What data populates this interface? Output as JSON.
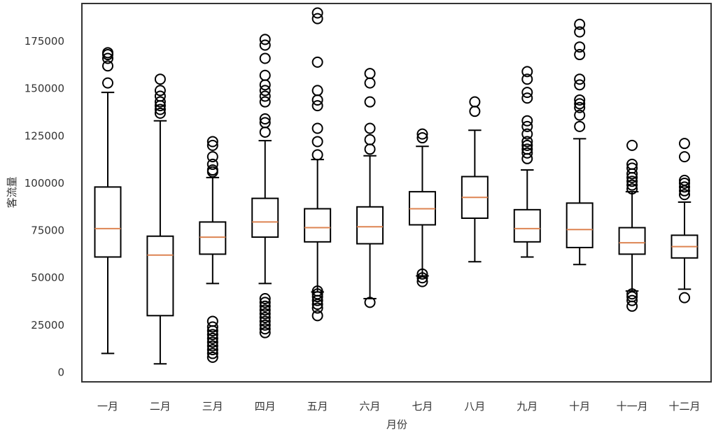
{
  "chart_data": {
    "type": "boxplot",
    "title": "",
    "xlabel": "月份",
    "ylabel": "客流量",
    "ylim": [
      -5000,
      195000
    ],
    "yticks": [
      0,
      25000,
      50000,
      75000,
      100000,
      125000,
      150000,
      175000
    ],
    "yticklabels": [
      "0",
      "25000",
      "50000",
      "75000",
      "100000",
      "125000",
      "150000",
      "175000"
    ],
    "grid": false,
    "colors": {
      "box": "#000000",
      "median": "#dd8452",
      "frame": "#333333"
    },
    "categories": [
      "一月",
      "二月",
      "三月",
      "四月",
      "五月",
      "六月",
      "七月",
      "八月",
      "九月",
      "十月",
      "十一月",
      "十二月"
    ],
    "boxes": [
      {
        "label": "一月",
        "whisker_low": 10000,
        "q1": 61000,
        "median": 76000,
        "q3": 98000,
        "whisker_high": 148000,
        "outliers": [
          153000,
          162000,
          166000,
          168000,
          169000
        ]
      },
      {
        "label": "二月",
        "whisker_low": 4500,
        "q1": 30000,
        "median": 62000,
        "q3": 72000,
        "whisker_high": 133000,
        "outliers": [
          137000,
          139000,
          141000,
          143000,
          146000,
          149000,
          155000
        ]
      },
      {
        "label": "三月",
        "whisker_low": 47000,
        "q1": 62500,
        "median": 71500,
        "q3": 79500,
        "whisker_high": 103000,
        "outliers": [
          8000,
          10000,
          12000,
          14000,
          16000,
          18000,
          20000,
          22000,
          24000,
          27000,
          106000,
          107000,
          110000,
          114000,
          120000,
          122000
        ]
      },
      {
        "label": "四月",
        "whisker_low": 47000,
        "q1": 71500,
        "median": 79500,
        "q3": 92000,
        "whisker_high": 122500,
        "outliers": [
          21000,
          23000,
          25000,
          27000,
          29000,
          31000,
          33000,
          35000,
          37000,
          39000,
          127000,
          132000,
          134000,
          143000,
          146000,
          149000,
          152000,
          157000,
          166000,
          173000,
          176000
        ]
      },
      {
        "label": "五月",
        "whisker_low": 42500,
        "q1": 69000,
        "median": 76500,
        "q3": 86500,
        "whisker_high": 112500,
        "outliers": [
          30000,
          34000,
          36000,
          38000,
          40000,
          41500,
          43000,
          115000,
          122000,
          129000,
          141000,
          144000,
          149000,
          164000,
          187000,
          190000
        ]
      },
      {
        "label": "六月",
        "whisker_low": 39000,
        "q1": 68000,
        "median": 77000,
        "q3": 87500,
        "whisker_high": 114500,
        "outliers": [
          37000,
          118000,
          123000,
          129000,
          143000,
          153000,
          158000
        ]
      },
      {
        "label": "七月",
        "whisker_low": 51000,
        "q1": 78000,
        "median": 86500,
        "q3": 95500,
        "whisker_high": 119500,
        "outliers": [
          48000,
          50000,
          52000,
          124000,
          126000
        ]
      },
      {
        "label": "八月",
        "whisker_low": 58500,
        "q1": 81500,
        "median": 92500,
        "q3": 103500,
        "whisker_high": 128000,
        "outliers": [
          138000,
          143000
        ]
      },
      {
        "label": "九月",
        "whisker_low": 61000,
        "q1": 69000,
        "median": 76000,
        "q3": 86000,
        "whisker_high": 107000,
        "outliers": [
          113000,
          116000,
          118000,
          120000,
          122000,
          126000,
          130000,
          133000,
          145000,
          148000,
          155000,
          159000
        ]
      },
      {
        "label": "十月",
        "whisker_low": 57000,
        "q1": 66000,
        "median": 75500,
        "q3": 89500,
        "whisker_high": 123500,
        "outliers": [
          130000,
          136000,
          140000,
          142000,
          144000,
          152000,
          155000,
          168000,
          172000,
          180000,
          184000
        ]
      },
      {
        "label": "十一月",
        "whisker_low": 43000,
        "q1": 62500,
        "median": 68500,
        "q3": 76500,
        "whisker_high": 95500,
        "outliers": [
          35000,
          38000,
          40000,
          41500,
          97000,
          99000,
          101000,
          103000,
          105000,
          108000,
          110000,
          120000
        ]
      },
      {
        "label": "十二月",
        "whisker_low": 44000,
        "q1": 60500,
        "median": 66500,
        "q3": 72500,
        "whisker_high": 90000,
        "outliers": [
          39500,
          94000,
          96000,
          98000,
          100000,
          101500,
          114000,
          121000
        ]
      }
    ]
  }
}
